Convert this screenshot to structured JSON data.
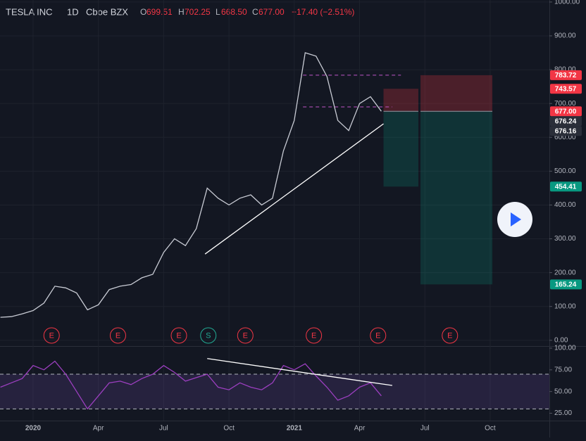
{
  "header": {
    "title": "TESLA INC",
    "interval": "1D",
    "exchange": "Cboe BZX",
    "open_label": "O",
    "open": "699.51",
    "high_label": "H",
    "high": "702.25",
    "low_label": "L",
    "low": "668.50",
    "close_label": "C",
    "close": "677.00",
    "change": "−17.40 (−2.51%)"
  },
  "chart_data": [
    {
      "type": "line",
      "name": "price",
      "x": [
        -1.5,
        -1,
        -0.5,
        0,
        0.5,
        1,
        1.5,
        2,
        2.5,
        3,
        3.5,
        4,
        4.5,
        5,
        5.5,
        6,
        6.5,
        7,
        7.5,
        8,
        8.5,
        9,
        9.5,
        10,
        10.5,
        11,
        11.5,
        12,
        12.5,
        13,
        13.5,
        14,
        14.5,
        15,
        15.5,
        16
      ],
      "series": [
        {
          "name": "TESLA INC",
          "color": "#c8cbd4",
          "values": [
            68,
            70,
            78,
            88,
            110,
            160,
            155,
            140,
            90,
            105,
            150,
            160,
            165,
            185,
            195,
            260,
            300,
            280,
            330,
            450,
            420,
            400,
            420,
            430,
            400,
            420,
            560,
            650,
            850,
            840,
            780,
            650,
            620,
            700,
            720,
            677
          ]
        }
      ],
      "xlim": [
        -1.52,
        23.72
      ],
      "xticks": [
        {
          "value": 0,
          "label": "2020"
        },
        {
          "value": 3,
          "label": "Apr"
        },
        {
          "value": 6,
          "label": "Jul"
        },
        {
          "value": 9,
          "label": "Oct"
        },
        {
          "value": 12,
          "label": "2021"
        },
        {
          "value": 15,
          "label": "Apr"
        },
        {
          "value": 18,
          "label": "Jul"
        },
        {
          "value": 21,
          "label": "Oct"
        }
      ],
      "ylim": [
        -17,
        1006
      ],
      "yticks": [
        {
          "value": 0,
          "label": "0.00"
        },
        {
          "value": 100,
          "label": "100.00"
        },
        {
          "value": 200,
          "label": "200.00"
        },
        {
          "value": 300,
          "label": "300.00"
        },
        {
          "value": 400,
          "label": "400.00"
        },
        {
          "value": 500,
          "label": "500.00"
        },
        {
          "value": 600,
          "label": "600.00"
        },
        {
          "value": 700,
          "label": "700.00"
        },
        {
          "value": 800,
          "label": "800.00"
        },
        {
          "value": 900,
          "label": "900.00"
        },
        {
          "value": 1000,
          "label": "1000.00"
        }
      ],
      "grid": true,
      "price_labels": [
        {
          "value": 783.72,
          "label": "783.72",
          "color": "#f23645"
        },
        {
          "value": 743.57,
          "label": "743.57",
          "color": "#f23645"
        },
        {
          "value": 677,
          "label": "677.00",
          "color": "#f23645"
        },
        {
          "value": 676.24,
          "label": "676.24",
          "color": "#2a2e39"
        },
        {
          "value": 676.16,
          "label": "676.16",
          "color": "#2a2e39"
        },
        {
          "value": 454.41,
          "label": "454.41",
          "color": "#089981"
        },
        {
          "value": 165.24,
          "label": "165.24",
          "color": "#089981"
        }
      ],
      "levels": [
        {
          "value": 783.72,
          "x": [
            12.4,
            16.9
          ]
        },
        {
          "value": 690,
          "x": [
            12.4,
            16.5
          ]
        }
      ],
      "trendlines": [
        {
          "x": [
            7.9,
            16.1
          ],
          "y": [
            255,
            640
          ]
        }
      ],
      "positions": [
        {
          "x": [
            16.1,
            17.7
          ],
          "entry": 677,
          "stop": 743.57,
          "target": 454.41
        },
        {
          "x": [
            17.8,
            21.1
          ],
          "entry": 677,
          "stop": 783.72,
          "target": 165.24
        }
      ],
      "events": [
        {
          "label": "E",
          "x": 0.85
        },
        {
          "label": "E",
          "x": 3.9
        },
        {
          "label": "E",
          "x": 6.7
        },
        {
          "label": "S",
          "x": 8.05
        },
        {
          "label": "E",
          "x": 9.75
        },
        {
          "label": "E",
          "x": 12.9
        },
        {
          "label": "E",
          "x": 15.85
        },
        {
          "label": "E",
          "x": 19.15
        }
      ]
    },
    {
      "type": "line",
      "name": "rsi",
      "x": [
        -1.5,
        -1,
        -0.5,
        0,
        0.5,
        1,
        1.5,
        2,
        2.5,
        3,
        3.5,
        4,
        4.5,
        5,
        5.5,
        6,
        6.5,
        7,
        7.5,
        8,
        8.5,
        9,
        9.5,
        10,
        10.5,
        11,
        11.5,
        12,
        12.5,
        13,
        13.5,
        14,
        14.5,
        15,
        15.5,
        16
      ],
      "series": [
        {
          "name": "RSI",
          "color": "#9c3fc0",
          "values": [
            55,
            60,
            65,
            80,
            75,
            85,
            70,
            50,
            30,
            45,
            60,
            62,
            58,
            65,
            70,
            80,
            72,
            62,
            66,
            70,
            55,
            52,
            60,
            55,
            52,
            60,
            80,
            75,
            82,
            68,
            55,
            40,
            45,
            55,
            60,
            45
          ]
        }
      ],
      "xlim": [
        -1.52,
        23.72
      ],
      "ylim": [
        16.5,
        101.6
      ],
      "yticks": [
        {
          "value": 25,
          "label": "25.00"
        },
        {
          "value": 50,
          "label": "50.00"
        },
        {
          "value": 75,
          "label": "75.00"
        },
        {
          "value": 100,
          "label": "100.00"
        }
      ],
      "band": [
        30,
        70
      ],
      "trendlines": [
        {
          "x": [
            8,
            16.5
          ],
          "y": [
            88,
            57
          ]
        }
      ]
    }
  ]
}
